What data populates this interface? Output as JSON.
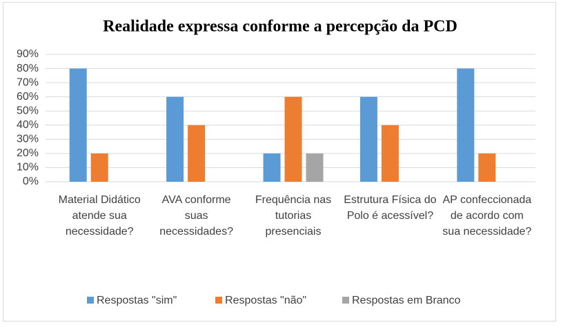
{
  "chart_data": {
    "type": "bar",
    "title": "Realidade expressa conforme a percepção da PCD",
    "categories": [
      "Material Didático atende sua necessidade?",
      "AVA conforme suas necessidades?",
      "Frequência nas tutorias presenciais",
      "Estrutura Física do Polo é acessível?",
      "AP confeccionada de acordo com sua necessidade?"
    ],
    "series": [
      {
        "name": "Respostas \"sim\"",
        "color": "#5b9bd5",
        "values": [
          80,
          60,
          20,
          60,
          80
        ]
      },
      {
        "name": "Respostas \"não\"",
        "color": "#ed7d31",
        "values": [
          20,
          40,
          60,
          40,
          20
        ]
      },
      {
        "name": "Respostas em Branco",
        "color": "#a5a5a5",
        "values": [
          0,
          0,
          20,
          0,
          0
        ]
      }
    ],
    "ylim": [
      0,
      90
    ],
    "yticks": [
      {
        "value": 0,
        "label": "0%"
      },
      {
        "value": 10,
        "label": "10%"
      },
      {
        "value": 20,
        "label": "20%"
      },
      {
        "value": 30,
        "label": "30%"
      },
      {
        "value": 40,
        "label": "40%"
      },
      {
        "value": 50,
        "label": "50%"
      },
      {
        "value": 60,
        "label": "60%"
      },
      {
        "value": 70,
        "label": "70%"
      },
      {
        "value": 80,
        "label": "80%"
      },
      {
        "value": 90,
        "label": "90%"
      }
    ],
    "grid": true,
    "legend": "bottom"
  }
}
